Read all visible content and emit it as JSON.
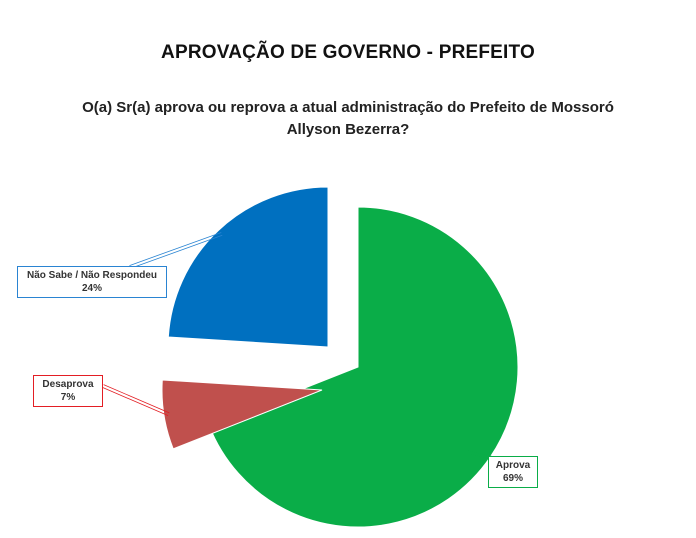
{
  "title": "APROVAÇÃO DE GOVERNO - PREFEITO",
  "subtitle": "O(a) Sr(a) aprova ou reprova a atual administração do Prefeito de Mossoró Allyson Bezerra?",
  "chart_data": {
    "type": "pie",
    "slices": [
      {
        "label": "Aprova",
        "value": 69,
        "value_label": "69%",
        "color": "#0aad48",
        "border": "#0aad48"
      },
      {
        "label": "Desaprova",
        "value": 7,
        "value_label": "7%",
        "color": "#c0504d",
        "border": "#e31e24"
      },
      {
        "label": "Não Sabe / Não Respondeu",
        "value": 24,
        "value_label": "24%",
        "color": "#0070c0",
        "border": "#2a84d2"
      }
    ],
    "exploded": [
      "Desaprova",
      "Não Sabe / Não Respondeu"
    ]
  }
}
